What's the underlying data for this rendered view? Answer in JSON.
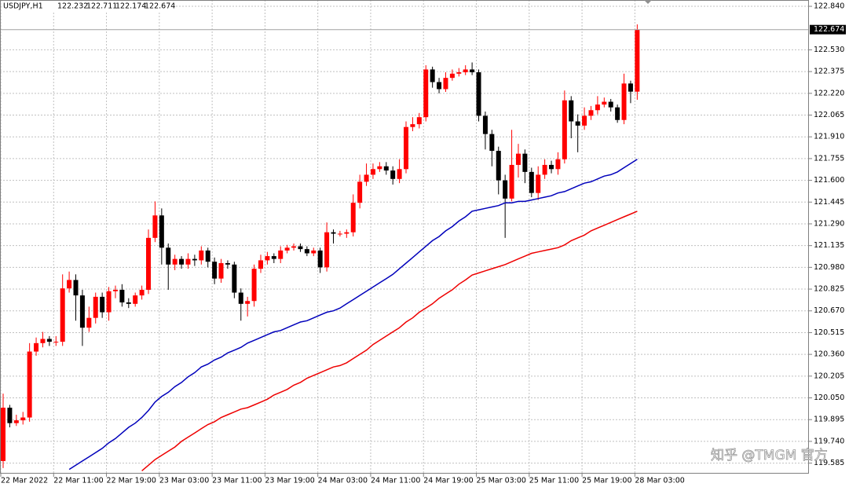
{
  "chart_data": {
    "type": "candlestick",
    "symbol": "USDJPY,H1",
    "watermark": "知乎 @TMGM 官方",
    "up_color": "#ff0000",
    "down_color": "#000000",
    "grid": true,
    "categories": [
      "22 Mar 2022",
      null,
      null,
      null,
      null,
      null,
      null,
      null,
      "22 Mar 11:00",
      null,
      null,
      null,
      null,
      null,
      null,
      null,
      "22 Mar 19:00",
      null,
      null,
      null,
      null,
      null,
      null,
      null,
      "23 Mar 03:00",
      null,
      null,
      null,
      null,
      null,
      null,
      null,
      "23 Mar 11:00",
      null,
      null,
      null,
      null,
      null,
      null,
      null,
      "23 Mar 19:00",
      null,
      null,
      null,
      null,
      null,
      null,
      null,
      "24 Mar 03:00",
      null,
      null,
      null,
      null,
      null,
      null,
      null,
      "24 Mar 11:00",
      null,
      null,
      null,
      null,
      null,
      null,
      null,
      "24 Mar 19:00",
      null,
      null,
      null,
      null,
      null,
      null,
      null,
      "25 Mar 03:00",
      null,
      null,
      null,
      null,
      null,
      null,
      null,
      "25 Mar 11:00",
      null,
      null,
      null,
      null,
      null,
      null,
      null,
      "25 Mar 19:00",
      null,
      null,
      null,
      null,
      null,
      null,
      null,
      "28 Mar 03:00"
    ],
    "open": [
      119.6,
      119.98,
      119.87,
      119.89,
      119.91,
      120.38,
      120.44,
      120.47,
      120.45,
      120.45,
      120.83,
      120.89,
      120.78,
      120.55,
      120.62,
      120.77,
      120.66,
      120.81,
      120.82,
      120.73,
      120.72,
      120.78,
      120.82,
      121.19,
      121.35,
      121.12,
      121.0,
      121.04,
      121.0,
      121.04,
      121.03,
      121.1,
      121.02,
      120.9,
      121.01,
      121.0,
      120.8,
      120.72,
      120.74,
      120.97,
      121.03,
      121.06,
      121.04,
      121.1,
      121.12,
      121.13,
      121.11,
      121.08,
      121.1,
      120.98,
      121.23,
      121.22,
      121.22,
      121.23,
      121.44,
      121.59,
      121.64,
      121.68,
      121.7,
      121.67,
      121.61,
      121.68,
      121.98,
      122.0,
      122.05,
      122.39,
      122.3,
      122.25,
      122.33,
      122.36,
      122.37,
      122.39,
      122.37,
      122.06,
      121.93,
      121.81,
      121.6,
      121.47,
      121.71,
      121.79,
      121.66,
      121.51,
      121.64,
      121.71,
      121.68,
      121.75,
      122.17,
      122.02,
      121.99,
      122.06,
      122.1,
      122.14,
      122.16,
      122.12,
      122.03,
      122.29,
      122.232
    ],
    "high": [
      120.08,
      120.0,
      119.93,
      119.95,
      120.44,
      120.48,
      120.52,
      120.49,
      120.49,
      120.93,
      120.95,
      120.93,
      120.82,
      120.7,
      120.8,
      120.8,
      120.84,
      120.85,
      120.86,
      120.76,
      120.8,
      120.85,
      121.25,
      121.45,
      121.4,
      121.15,
      121.07,
      121.06,
      121.08,
      121.07,
      121.13,
      121.12,
      121.05,
      121.04,
      121.03,
      121.02,
      120.83,
      120.77,
      121.0,
      121.07,
      121.09,
      121.08,
      121.13,
      121.14,
      121.15,
      121.15,
      121.13,
      121.12,
      121.12,
      121.3,
      121.25,
      121.24,
      121.25,
      121.5,
      121.64,
      121.72,
      121.72,
      121.73,
      121.73,
      121.7,
      121.75,
      122.02,
      122.05,
      122.08,
      122.42,
      122.41,
      122.33,
      122.37,
      122.39,
      122.4,
      122.42,
      122.44,
      122.39,
      122.09,
      121.96,
      121.84,
      121.64,
      121.96,
      121.86,
      121.82,
      121.69,
      121.7,
      121.75,
      121.74,
      121.8,
      122.24,
      122.2,
      122.07,
      122.12,
      122.13,
      122.2,
      122.19,
      122.18,
      122.14,
      122.36,
      122.31,
      122.711
    ],
    "low": [
      119.55,
      119.84,
      119.85,
      119.86,
      119.88,
      120.35,
      120.41,
      120.42,
      120.42,
      120.42,
      120.8,
      120.6,
      120.42,
      120.52,
      120.58,
      120.62,
      120.6,
      120.76,
      120.7,
      120.69,
      120.7,
      120.75,
      120.79,
      121.16,
      121.0,
      120.82,
      120.96,
      120.97,
      120.97,
      120.99,
      121.0,
      120.98,
      120.86,
      120.87,
      120.97,
      120.76,
      120.6,
      120.63,
      120.7,
      120.94,
      121.0,
      121.01,
      121.01,
      121.08,
      121.1,
      121.09,
      121.06,
      121.06,
      120.94,
      120.95,
      121.15,
      121.2,
      121.19,
      121.2,
      121.4,
      121.56,
      121.61,
      121.66,
      121.64,
      121.57,
      121.58,
      121.65,
      121.95,
      121.97,
      122.02,
      122.26,
      122.22,
      122.23,
      122.31,
      122.34,
      122.35,
      122.35,
      122.02,
      121.82,
      121.7,
      121.5,
      121.19,
      121.45,
      121.62,
      121.58,
      121.48,
      121.46,
      121.61,
      121.65,
      121.64,
      121.72,
      121.9,
      121.8,
      121.96,
      122.03,
      122.07,
      122.12,
      122.09,
      122.01,
      122.0,
      122.15,
      122.174
    ],
    "close": [
      119.98,
      119.87,
      119.89,
      119.91,
      120.38,
      120.44,
      120.47,
      120.45,
      120.45,
      120.83,
      120.89,
      120.78,
      120.55,
      120.62,
      120.77,
      120.66,
      120.81,
      120.82,
      120.73,
      120.72,
      120.78,
      120.82,
      121.19,
      121.35,
      121.12,
      121.0,
      121.04,
      121.0,
      121.04,
      121.03,
      121.1,
      121.02,
      120.9,
      121.01,
      121.0,
      120.8,
      120.72,
      120.74,
      120.97,
      121.03,
      121.06,
      121.04,
      121.1,
      121.12,
      121.13,
      121.11,
      121.08,
      121.1,
      120.98,
      121.23,
      121.22,
      121.22,
      121.23,
      121.44,
      121.59,
      121.64,
      121.68,
      121.7,
      121.67,
      121.61,
      121.68,
      121.98,
      122.0,
      122.05,
      122.39,
      122.3,
      122.25,
      122.33,
      122.36,
      122.37,
      122.39,
      122.37,
      122.06,
      121.93,
      121.81,
      121.6,
      121.47,
      121.71,
      121.79,
      121.66,
      121.51,
      121.64,
      121.71,
      121.68,
      121.75,
      122.17,
      122.02,
      121.99,
      122.06,
      122.1,
      122.14,
      122.16,
      122.12,
      122.03,
      122.29,
      122.232,
      122.674
    ],
    "ma_lines": [
      {
        "color": "#0000bb",
        "values": [
          null,
          null,
          null,
          null,
          null,
          null,
          null,
          null,
          null,
          null,
          119.54,
          119.57,
          119.6,
          119.63,
          119.66,
          119.69,
          119.73,
          119.76,
          119.8,
          119.84,
          119.87,
          119.91,
          119.96,
          120.02,
          120.06,
          120.09,
          120.13,
          120.16,
          120.2,
          120.23,
          120.27,
          120.29,
          120.32,
          120.34,
          120.37,
          120.39,
          120.41,
          120.44,
          120.46,
          120.48,
          120.5,
          120.52,
          120.53,
          120.55,
          120.57,
          120.59,
          120.6,
          120.62,
          120.64,
          120.66,
          120.67,
          120.69,
          120.72,
          120.75,
          120.78,
          120.81,
          120.84,
          120.87,
          120.9,
          120.93,
          120.97,
          121.01,
          121.05,
          121.09,
          121.13,
          121.17,
          121.2,
          121.24,
          121.27,
          121.31,
          121.34,
          121.38,
          121.39,
          121.4,
          121.41,
          121.42,
          121.44,
          121.44,
          121.45,
          121.45,
          121.46,
          121.47,
          121.48,
          121.49,
          121.51,
          121.52,
          121.54,
          121.56,
          121.58,
          121.59,
          121.61,
          121.63,
          121.64,
          121.66,
          121.69,
          121.72,
          121.75
        ]
      },
      {
        "color": "#ee0000",
        "values": [
          null,
          null,
          null,
          null,
          null,
          null,
          null,
          null,
          null,
          null,
          null,
          null,
          null,
          null,
          null,
          null,
          null,
          null,
          null,
          null,
          null,
          119.53,
          119.57,
          119.61,
          119.64,
          119.67,
          119.7,
          119.74,
          119.77,
          119.8,
          119.83,
          119.86,
          119.88,
          119.91,
          119.93,
          119.95,
          119.97,
          119.98,
          120.0,
          120.02,
          120.04,
          120.07,
          120.09,
          120.11,
          120.14,
          120.16,
          120.19,
          120.21,
          120.23,
          120.25,
          120.27,
          120.28,
          120.3,
          120.33,
          120.36,
          120.39,
          120.43,
          120.46,
          120.49,
          120.52,
          120.55,
          120.59,
          120.62,
          120.66,
          120.69,
          120.72,
          120.76,
          120.79,
          120.82,
          120.86,
          120.89,
          120.925,
          120.94,
          120.955,
          120.97,
          120.985,
          121.0,
          121.02,
          121.04,
          121.06,
          121.08,
          121.09,
          121.1,
          121.11,
          121.12,
          121.14,
          121.17,
          121.19,
          121.21,
          121.24,
          121.26,
          121.28,
          121.3,
          121.32,
          121.34,
          121.36,
          121.38
        ]
      }
    ],
    "ylim": [
      119.51,
      122.885
    ],
    "yticks": [
      {
        "value": 122.84,
        "label": "122.840"
      },
      {
        "value": 122.53,
        "label": "122.530"
      },
      122.375,
      {
        "value": 122.22,
        "label": "122.220"
      },
      122.065,
      {
        "value": 121.91,
        "label": "121.910"
      },
      121.755,
      {
        "value": 121.6,
        "label": "121.600"
      },
      121.445,
      {
        "value": 121.29,
        "label": "121.290"
      },
      121.135,
      {
        "value": 120.98,
        "label": "120.980"
      },
      120.825,
      {
        "value": 120.67,
        "label": "120.670"
      },
      120.515,
      {
        "value": 120.36,
        "label": "120.360"
      },
      120.205,
      {
        "value": 120.05,
        "label": "120.050"
      },
      119.895,
      {
        "value": 119.74,
        "label": "119.740"
      },
      119.585
    ]
  }
}
